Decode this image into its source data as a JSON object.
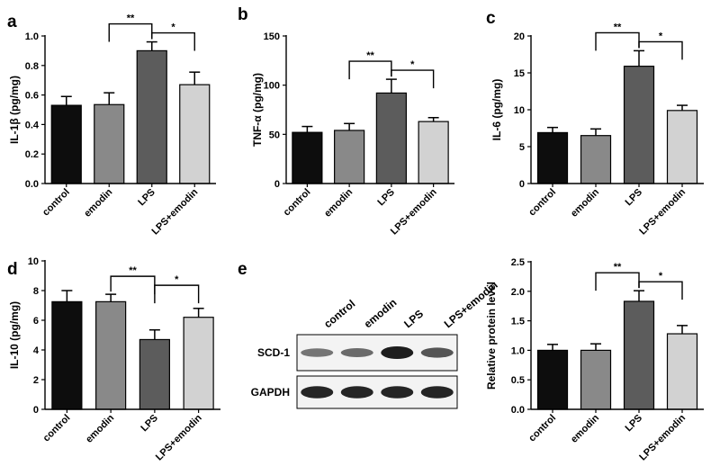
{
  "panel_letters": [
    "a",
    "b",
    "c",
    "d",
    "e"
  ],
  "colors": {
    "control": "#0d0d0d",
    "emodin": "#898989",
    "LPS": "#5c5c5c",
    "LPS+emodin": "#d2d2d2",
    "axis": "#000000"
  },
  "chart_data": [
    {
      "panel": "a",
      "type": "bar",
      "categories": [
        "control",
        "emodin",
        "LPS",
        "LPS+emodin"
      ],
      "values": [
        0.53,
        0.535,
        0.9,
        0.67
      ],
      "errors": [
        0.06,
        0.08,
        0.06,
        0.085
      ],
      "ylabel": "IL-1β (pg/mg)",
      "ylim": [
        0,
        1.0
      ],
      "yticks": [
        "0.0",
        "0.2",
        "0.4",
        "0.6",
        "0.8",
        "1.0"
      ],
      "significance": [
        {
          "from": 1,
          "to": 2,
          "label": "**"
        },
        {
          "from": 2,
          "to": 3,
          "label": "*"
        }
      ]
    },
    {
      "panel": "b",
      "type": "bar",
      "categories": [
        "control",
        "emodin",
        "LPS",
        "LPS+emodin"
      ],
      "values": [
        52,
        54,
        92,
        63
      ],
      "errors": [
        6,
        7,
        14,
        4
      ],
      "ylabel": "TNF-α (pg/mg)",
      "ylim": [
        0,
        150
      ],
      "yticks": [
        "0",
        "50",
        "100",
        "150"
      ],
      "significance": [
        {
          "from": 1,
          "to": 2,
          "label": "**"
        },
        {
          "from": 2,
          "to": 3,
          "label": "*"
        }
      ]
    },
    {
      "panel": "c",
      "type": "bar",
      "categories": [
        "control",
        "emodin",
        "LPS",
        "LPS+emodin"
      ],
      "values": [
        6.9,
        6.5,
        15.9,
        9.9
      ],
      "errors": [
        0.7,
        0.9,
        2.1,
        0.7
      ],
      "ylabel": "IL-6 (pg/mg)",
      "ylim": [
        0,
        20
      ],
      "yticks": [
        "0",
        "5",
        "10",
        "15",
        "20"
      ],
      "significance": [
        {
          "from": 1,
          "to": 2,
          "label": "**"
        },
        {
          "from": 2,
          "to": 3,
          "label": "*"
        }
      ]
    },
    {
      "panel": "d",
      "type": "bar",
      "categories": [
        "control",
        "emodin",
        "LPS",
        "LPS+emodin"
      ],
      "values": [
        7.25,
        7.25,
        4.7,
        6.2
      ],
      "errors": [
        0.75,
        0.5,
        0.65,
        0.6
      ],
      "ylabel": "IL-10 (pg/mg)",
      "ylim": [
        0,
        10
      ],
      "yticks": [
        "0",
        "2",
        "4",
        "6",
        "8",
        "10"
      ],
      "significance": [
        {
          "from": 1,
          "to": 2,
          "label": "**"
        },
        {
          "from": 2,
          "to": 3,
          "label": "*"
        }
      ]
    },
    {
      "panel": "e",
      "type": "bar",
      "categories": [
        "control",
        "emodin",
        "LPS",
        "LPS+emodin"
      ],
      "values": [
        1.0,
        1.0,
        1.83,
        1.28
      ],
      "errors": [
        0.1,
        0.11,
        0.18,
        0.14
      ],
      "ylabel": "Relative protein level",
      "ylim": [
        0,
        2.5
      ],
      "yticks": [
        "0.0",
        "0.5",
        "1.0",
        "1.5",
        "2.0",
        "2.5"
      ],
      "significance": [
        {
          "from": 1,
          "to": 2,
          "label": "**"
        },
        {
          "from": 2,
          "to": 3,
          "label": "*"
        }
      ]
    }
  ],
  "western_blot": {
    "lanes": [
      "control",
      "emodin",
      "LPS",
      "LPS+emodin"
    ],
    "rows": [
      {
        "label": "SCD-1",
        "intensity": [
          0.45,
          0.5,
          1.0,
          0.65
        ]
      },
      {
        "label": "GAPDH",
        "intensity": [
          0.95,
          0.95,
          0.95,
          0.95
        ]
      }
    ]
  }
}
